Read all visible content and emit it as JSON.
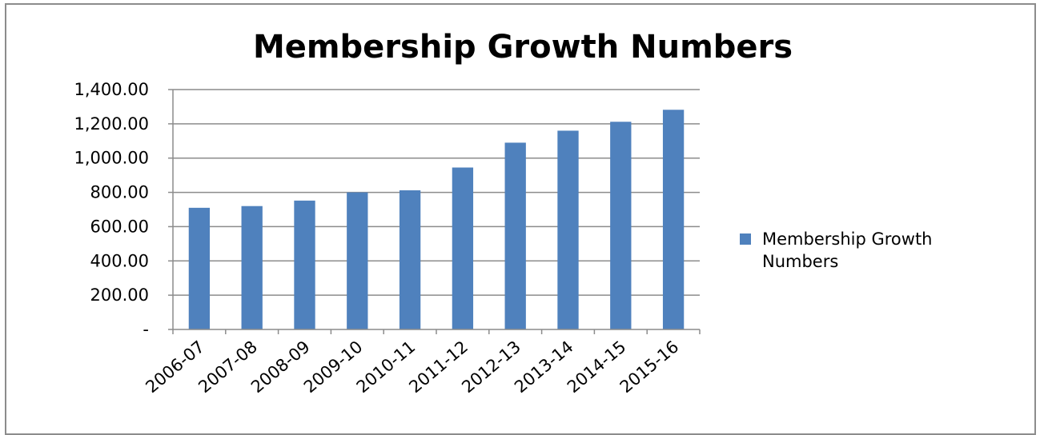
{
  "chart_data": {
    "type": "bar",
    "title": "Membership Growth Numbers",
    "categories": [
      "2006-07",
      "2007-08",
      "2008-09",
      "2009-10",
      "2010-11",
      "2011-12",
      "2012-13",
      "2013-14",
      "2014-15",
      "2015-16"
    ],
    "series": [
      {
        "name": "Membership Growth Numbers",
        "values": [
          710,
          720,
          752,
          800,
          812,
          945,
          1090,
          1160,
          1212,
          1282
        ],
        "color": "#4f81bd"
      }
    ],
    "ylim": [
      0,
      1400
    ],
    "ytick_values": [
      0,
      200,
      400,
      600,
      800,
      1000,
      1200,
      1400
    ],
    "ytick_labels": [
      "-",
      "200.00",
      "400.00",
      "600.00",
      "800.00",
      "1,000.00",
      "1,200.00",
      "1,400.00"
    ],
    "grid": true,
    "legend_position": "right",
    "gridline_color": "#8c8c8c",
    "axis_color": "#8c8c8c"
  }
}
